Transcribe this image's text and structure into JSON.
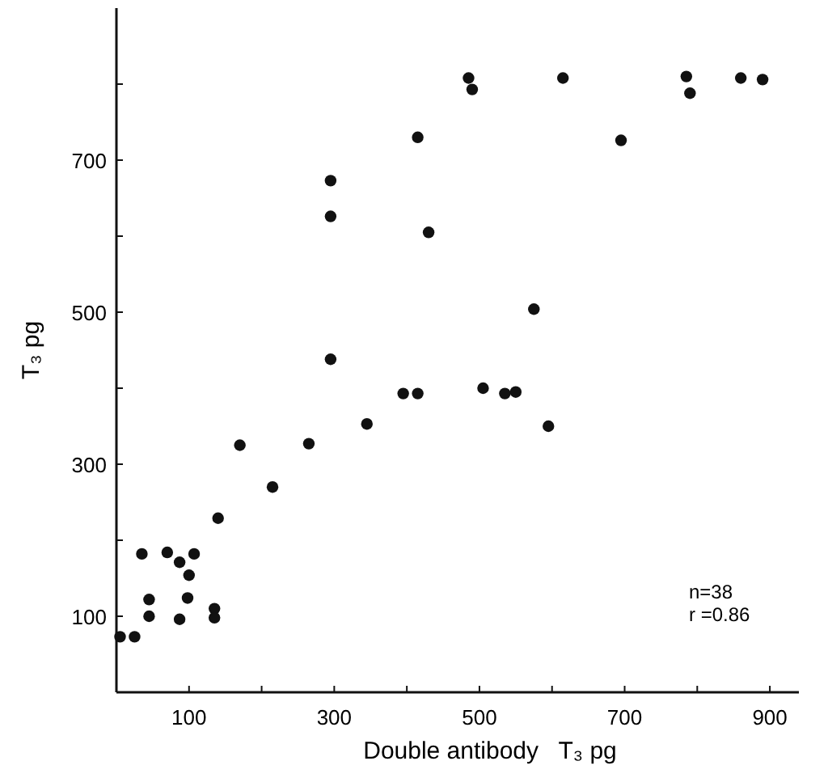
{
  "chart_data": {
    "type": "scatter",
    "xlabel": "Double antibody   T₃ pg",
    "ylabel": "T₃ pg",
    "annotations": [
      "n=38",
      "r =0.86"
    ],
    "xlim": [
      0,
      940
    ],
    "ylim": [
      0,
      900
    ],
    "xticks": [
      {
        "value": 0,
        "label": null
      },
      100,
      {
        "value": 200,
        "label": null
      },
      300,
      {
        "value": 400,
        "label": null
      },
      500,
      {
        "value": 600,
        "label": null
      },
      700,
      {
        "value": 800,
        "label": null
      },
      900
    ],
    "yticks": [
      100,
      {
        "value": 200,
        "label": null
      },
      300,
      {
        "value": 400,
        "label": null
      },
      500,
      {
        "value": 600,
        "label": null
      },
      700,
      {
        "value": 800,
        "label": null
      }
    ],
    "grid": false,
    "marker": "circle",
    "series": [
      {
        "color": "#111111",
        "x": [
          5,
          25,
          35,
          45,
          45,
          70,
          87,
          87,
          98,
          100,
          107,
          135,
          135,
          140,
          170,
          215,
          265,
          295,
          295,
          295,
          345,
          395,
          415,
          415,
          430,
          505,
          535,
          550,
          575,
          595,
          485,
          490,
          615,
          695,
          785,
          790,
          860,
          890
        ],
        "values": [
          73,
          73,
          182,
          122,
          100,
          184,
          171,
          96,
          124,
          154,
          182,
          110,
          98,
          229,
          325,
          270,
          327,
          438,
          626,
          673,
          353,
          393,
          393,
          730,
          605,
          400,
          393,
          395,
          504,
          350,
          808,
          793,
          808,
          726,
          810,
          788,
          808,
          806
        ]
      }
    ]
  }
}
